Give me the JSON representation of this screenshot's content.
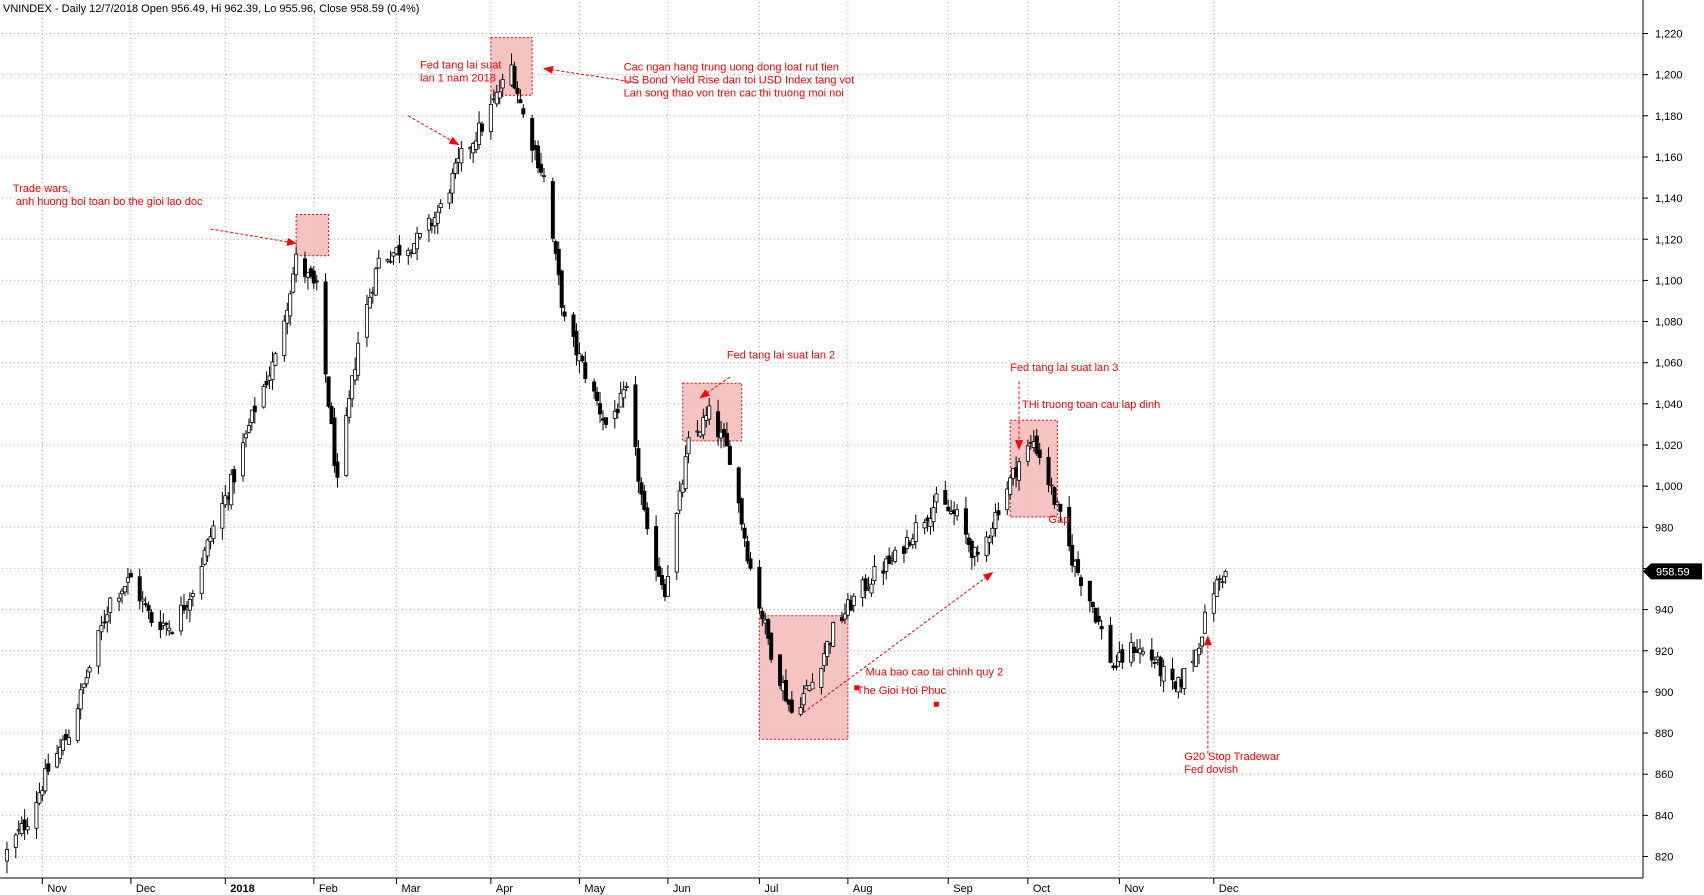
{
  "chart_data": {
    "type": "candlestick",
    "title": "VNINDEX - Daily 12/7/2018 Open 956.49, Hi 962.39, Lo 955.96, Close 958.59 (0.4%)",
    "ylim": [
      810,
      1228
    ],
    "y_ticks": [
      820,
      840,
      860,
      880,
      900,
      920,
      940,
      960,
      980,
      1000,
      1020,
      1040,
      1060,
      1080,
      1100,
      1120,
      1140,
      1160,
      1180,
      1200,
      1220
    ],
    "y_tick_labels": [
      "820",
      "840",
      "860",
      "880",
      "900",
      "920",
      "940",
      "960",
      "980",
      "1,000",
      "1,020",
      "1,040",
      "1,060",
      "1,080",
      "1,100",
      "1,120",
      "1,140",
      "1,160",
      "1,180",
      "1,200",
      "1,220"
    ],
    "x_start": "2017-10-19",
    "x_end": "2017-12-31",
    "x_ticks": [
      {
        "date": "2017-11-01",
        "label": "Nov"
      },
      {
        "date": "2017-12-01",
        "label": "Dec"
      },
      {
        "date": "2018-01-02",
        "label": "2018"
      },
      {
        "date": "2018-02-01",
        "label": "Feb"
      },
      {
        "date": "2018-03-01",
        "label": "Mar"
      },
      {
        "date": "2018-04-02",
        "label": "Apr"
      },
      {
        "date": "2018-05-02",
        "label": "May"
      },
      {
        "date": "2018-06-01",
        "label": "Jun"
      },
      {
        "date": "2018-07-02",
        "label": "Jul"
      },
      {
        "date": "2018-08-01",
        "label": "Aug"
      },
      {
        "date": "2018-09-04",
        "label": "Sep"
      },
      {
        "date": "2018-10-01",
        "label": "Oct"
      },
      {
        "date": "2018-11-01",
        "label": "Nov"
      },
      {
        "date": "2018-12-03",
        "label": "Dec"
      }
    ],
    "last_price_label": "958.59",
    "last_close": 958.59,
    "anchors": [
      {
        "date": "2017-10-20",
        "close": 822
      },
      {
        "date": "2017-10-27",
        "close": 838
      },
      {
        "date": "2017-11-03",
        "close": 862
      },
      {
        "date": "2017-11-10",
        "close": 880
      },
      {
        "date": "2017-11-17",
        "close": 912
      },
      {
        "date": "2017-11-24",
        "close": 945
      },
      {
        "date": "2017-12-01",
        "close": 955
      },
      {
        "date": "2017-12-08",
        "close": 935
      },
      {
        "date": "2017-12-15",
        "close": 932
      },
      {
        "date": "2017-12-22",
        "close": 950
      },
      {
        "date": "2017-12-29",
        "close": 980
      },
      {
        "date": "2018-01-05",
        "close": 1005
      },
      {
        "date": "2018-01-12",
        "close": 1038
      },
      {
        "date": "2018-01-19",
        "close": 1062
      },
      {
        "date": "2018-01-26",
        "close": 1110
      },
      {
        "date": "2018-02-02",
        "close": 1095
      },
      {
        "date": "2018-02-09",
        "close": 1000
      },
      {
        "date": "2018-02-16",
        "close": 1070
      },
      {
        "date": "2018-02-23",
        "close": 1110
      },
      {
        "date": "2018-03-02",
        "close": 1115
      },
      {
        "date": "2018-03-09",
        "close": 1120
      },
      {
        "date": "2018-03-16",
        "close": 1135
      },
      {
        "date": "2018-03-23",
        "close": 1160
      },
      {
        "date": "2018-03-30",
        "close": 1175
      },
      {
        "date": "2018-04-06",
        "close": 1195
      },
      {
        "date": "2018-04-09",
        "close": 1204
      },
      {
        "date": "2018-04-13",
        "close": 1180
      },
      {
        "date": "2018-04-20",
        "close": 1150
      },
      {
        "date": "2018-04-27",
        "close": 1080
      },
      {
        "date": "2018-05-04",
        "close": 1055
      },
      {
        "date": "2018-05-11",
        "close": 1030
      },
      {
        "date": "2018-05-18",
        "close": 1045
      },
      {
        "date": "2018-05-25",
        "close": 975
      },
      {
        "date": "2018-05-31",
        "close": 950
      },
      {
        "date": "2018-06-08",
        "close": 1020
      },
      {
        "date": "2018-06-15",
        "close": 1035
      },
      {
        "date": "2018-06-22",
        "close": 1015
      },
      {
        "date": "2018-06-29",
        "close": 960
      },
      {
        "date": "2018-07-06",
        "close": 920
      },
      {
        "date": "2018-07-13",
        "close": 890
      },
      {
        "date": "2018-07-20",
        "close": 905
      },
      {
        "date": "2018-07-27",
        "close": 930
      },
      {
        "date": "2018-08-03",
        "close": 945
      },
      {
        "date": "2018-08-10",
        "close": 957
      },
      {
        "date": "2018-08-17",
        "close": 965
      },
      {
        "date": "2018-08-24",
        "close": 980
      },
      {
        "date": "2018-08-31",
        "close": 992
      },
      {
        "date": "2018-09-07",
        "close": 985
      },
      {
        "date": "2018-09-14",
        "close": 963
      },
      {
        "date": "2018-09-21",
        "close": 990
      },
      {
        "date": "2018-09-28",
        "close": 1012
      },
      {
        "date": "2018-10-03",
        "close": 1022
      },
      {
        "date": "2018-10-05",
        "close": 1015
      },
      {
        "date": "2018-10-09",
        "close": 998
      },
      {
        "date": "2018-10-16",
        "close": 965
      },
      {
        "date": "2018-10-23",
        "close": 942
      },
      {
        "date": "2018-10-30",
        "close": 912
      },
      {
        "date": "2018-11-06",
        "close": 922
      },
      {
        "date": "2018-11-13",
        "close": 915
      },
      {
        "date": "2018-11-20",
        "close": 900
      },
      {
        "date": "2018-11-27",
        "close": 920
      },
      {
        "date": "2018-12-03",
        "close": 950
      },
      {
        "date": "2018-12-07",
        "close": 958.59
      }
    ],
    "grid": true,
    "legend": "none",
    "colors": {
      "up": "#ffffff",
      "down": "#000000",
      "annotation": "#ff0000",
      "box_fill": "#f4b8b8"
    },
    "highlight_boxes": [
      {
        "date_from": "2018-01-26",
        "date_to": "2018-02-06",
        "price_low": 1112,
        "price_high": 1132
      },
      {
        "date_from": "2018-04-02",
        "date_to": "2018-04-16",
        "price_low": 1190,
        "price_high": 1218
      },
      {
        "date_from": "2018-06-06",
        "date_to": "2018-06-26",
        "price_low": 1022,
        "price_high": 1050
      },
      {
        "date_from": "2018-07-02",
        "date_to": "2018-08-01",
        "price_low": 877,
        "price_high": 937
      },
      {
        "date_from": "2018-09-25",
        "date_to": "2018-10-11",
        "price_low": 985,
        "price_high": 1032
      }
    ],
    "annotations": [
      {
        "lines": [
          "Trade  wars,",
          "  anh huong boi toan bo the gioi lao doc"
        ],
        "date": "2017-10-22",
        "price": 1143
      },
      {
        "lines": [
          "Fed tang lai suat",
          "lan 1 nam 2018"
        ],
        "date": "2018-03-09",
        "price": 1203
      },
      {
        "lines": [
          "Cac ngan hang trung uong dong loat rut tien",
          "US Bond Yield Rise dan toi USD Index tang vot",
          "Lan song thao von tren cac thi truong moi noi"
        ],
        "date": "2018-05-17",
        "price": 1202
      },
      {
        "lines": [
          "Fed tang lai suat lan 2"
        ],
        "date": "2018-06-21",
        "price": 1062
      },
      {
        "lines": [
          "Fed tang lai suat lan 3"
        ],
        "date": "2018-09-25",
        "price": 1056
      },
      {
        "lines": [
          "THi truong toan cau lap dinh"
        ],
        "date": "2018-09-29",
        "price": 1038
      },
      {
        "lines": [
          "Gap"
        ],
        "date": "2018-10-08",
        "price": 982
      },
      {
        "lines": [
          "Mua bao cao tai chinh quy 2"
        ],
        "date": "2018-08-07",
        "price": 908
      },
      {
        "lines": [
          "The Gioi Hoi Phuc"
        ],
        "date": "2018-08-04",
        "price": 899
      },
      {
        "lines": [
          "G20 Stop Tradewar",
          "Fed dovish"
        ],
        "date": "2018-11-23",
        "price": 867
      }
    ],
    "arrows": [
      {
        "from_date": "2017-12-28",
        "from_price": 1125,
        "to_date": "2018-01-26",
        "to_price": 1118
      },
      {
        "from_date": "2018-03-05",
        "from_price": 1180,
        "to_date": "2018-03-22",
        "to_price": 1166
      },
      {
        "from_date": "2018-05-22",
        "from_price": 1196,
        "to_date": "2018-04-20",
        "to_price": 1203
      },
      {
        "from_date": "2018-06-22",
        "from_price": 1053,
        "to_date": "2018-06-12",
        "to_price": 1043
      },
      {
        "from_date": "2018-09-28",
        "from_price": 1051,
        "to_date": "2018-09-28",
        "to_price": 1018
      },
      {
        "from_date": "2018-07-17",
        "from_price": 890,
        "to_date": "2018-09-19",
        "to_price": 958
      },
      {
        "from_date": "2018-12-01",
        "from_price": 870,
        "to_date": "2018-12-01",
        "to_price": 927
      }
    ],
    "markers": [
      {
        "date": "2018-08-04",
        "price": 902
      },
      {
        "date": "2018-08-31",
        "price": 894
      }
    ]
  }
}
